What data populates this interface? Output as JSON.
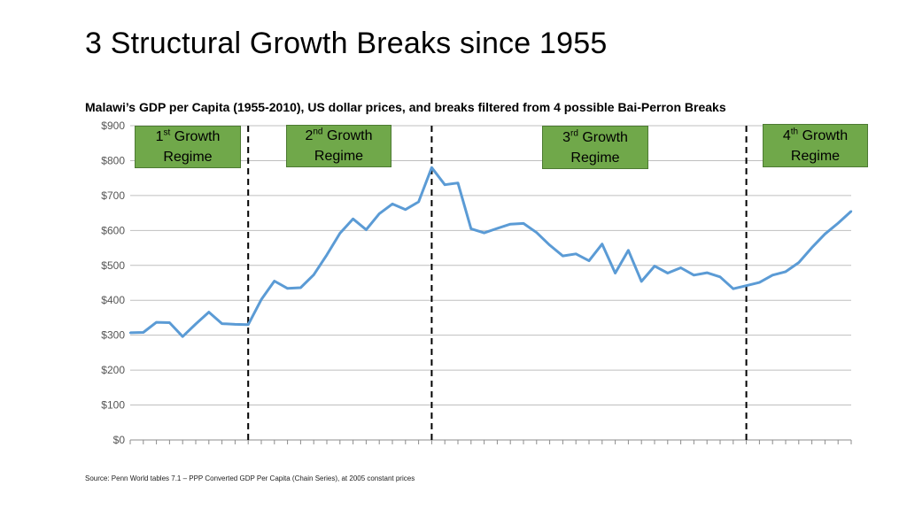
{
  "slide": {
    "title": "3 Structural Growth Breaks since 1955",
    "source": "Source: Penn World tables 7.1 – PPP Converted GDP Per Capita (Chain Series), at 2005 constant prices"
  },
  "regimes": [
    {
      "ordinal": "1",
      "suffix": "st",
      "text": "Growth",
      "line2": "Regime"
    },
    {
      "ordinal": "2",
      "suffix": "nd",
      "text": "Growth",
      "line2": "Regime"
    },
    {
      "ordinal": "3",
      "suffix": "rd",
      "text": "Growth",
      "line2": "Regime"
    },
    {
      "ordinal": "4",
      "suffix": "th",
      "text": "Growth",
      "line2": "Regime"
    }
  ],
  "chart_data": {
    "type": "line",
    "title": "Malawi’s GDP per Capita (1955-2010), US dollar prices, and breaks filtered from 4 possible Bai-Perron Breaks",
    "xlabel": "",
    "ylabel": "",
    "ylim": [
      0,
      900
    ],
    "ytick_labels": [
      "$0",
      "$100",
      "$200",
      "$300",
      "$400",
      "$500",
      "$600",
      "$700",
      "$800",
      "$900"
    ],
    "y_ticks": [
      0,
      100,
      200,
      300,
      400,
      500,
      600,
      700,
      800,
      900
    ],
    "grid": true,
    "line_color": "#5b9bd5",
    "break_years": [
      1964,
      1978,
      2002
    ],
    "x": [
      1955,
      1956,
      1957,
      1958,
      1959,
      1960,
      1961,
      1962,
      1963,
      1964,
      1965,
      1966,
      1967,
      1968,
      1969,
      1970,
      1971,
      1972,
      1973,
      1974,
      1975,
      1976,
      1977,
      1978,
      1979,
      1980,
      1981,
      1982,
      1983,
      1984,
      1985,
      1986,
      1987,
      1988,
      1989,
      1990,
      1991,
      1992,
      1993,
      1994,
      1995,
      1996,
      1997,
      1998,
      1999,
      2000,
      2001,
      2002,
      2003,
      2004,
      2005,
      2006,
      2007,
      2008,
      2009,
      2010
    ],
    "series": [
      {
        "values": [
          307,
          308,
          337,
          336,
          296,
          332,
          366,
          333,
          331,
          330,
          402,
          455,
          434,
          436,
          473,
          530,
          592,
          633,
          602,
          648,
          676,
          660,
          682,
          780,
          731,
          736,
          605,
          593,
          606,
          618,
          620,
          594,
          558,
          527,
          533,
          513,
          561,
          478,
          543,
          454,
          498,
          478,
          493,
          472,
          479,
          467,
          433,
          442,
          451,
          472,
          482,
          508,
          551,
          590,
          621,
          655
        ]
      }
    ]
  }
}
